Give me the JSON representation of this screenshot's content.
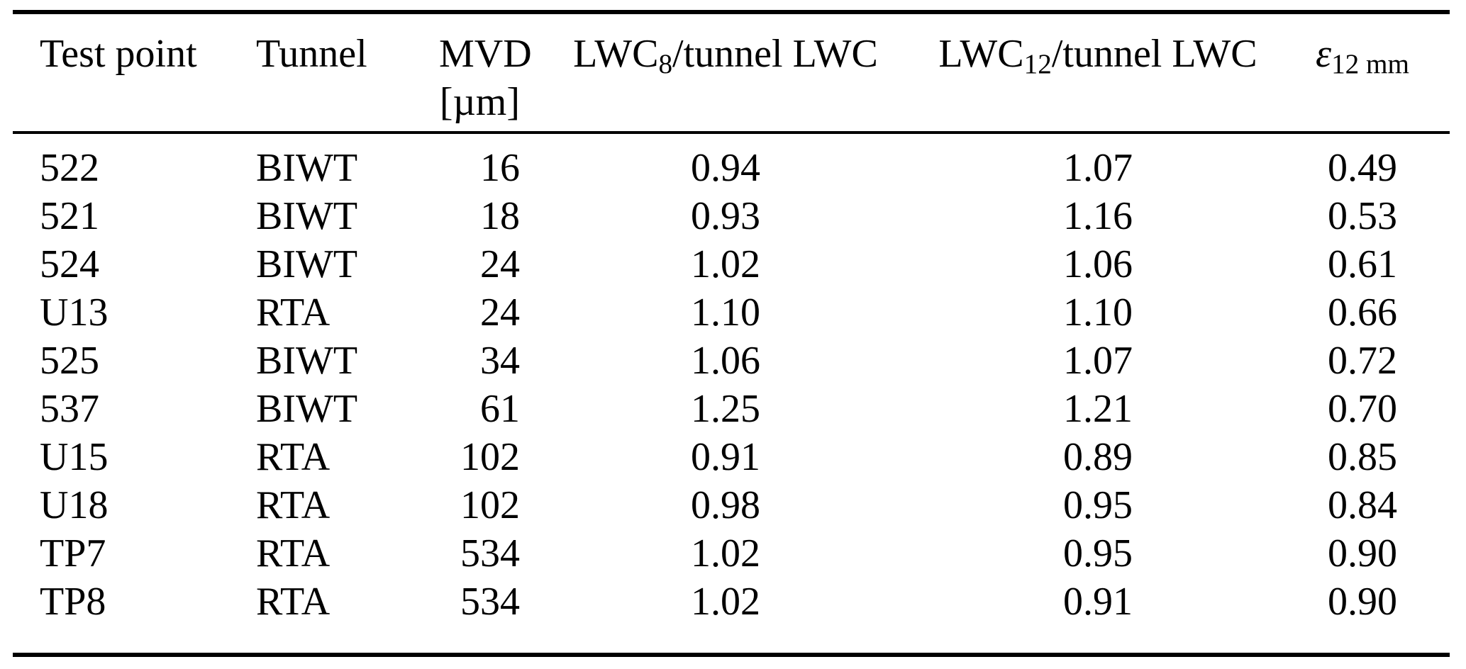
{
  "table": {
    "headers": [
      {
        "id": "test-point",
        "line1": "Test point"
      },
      {
        "id": "tunnel",
        "line1": "Tunnel"
      },
      {
        "id": "mvd",
        "line1": "MVD",
        "line2": "[µm]"
      },
      {
        "id": "lwc8-ratio",
        "pre": "LWC",
        "sub": "8",
        "post": "/tunnel LWC"
      },
      {
        "id": "lwc12-ratio",
        "pre": "LWC",
        "sub": "12",
        "post": "/tunnel LWC"
      },
      {
        "id": "epsilon-12mm",
        "pre": "ε",
        "sub": "12 mm",
        "post": "",
        "italic": true
      }
    ],
    "rows": [
      [
        "522",
        "BIWT",
        "16",
        "0.94",
        "1.07",
        "0.49"
      ],
      [
        "521",
        "BIWT",
        "18",
        "0.93",
        "1.16",
        "0.53"
      ],
      [
        "524",
        "BIWT",
        "24",
        "1.02",
        "1.06",
        "0.61"
      ],
      [
        "U13",
        "RTA",
        "24",
        "1.10",
        "1.10",
        "0.66"
      ],
      [
        "525",
        "BIWT",
        "34",
        "1.06",
        "1.07",
        "0.72"
      ],
      [
        "537",
        "BIWT",
        "61",
        "1.25",
        "1.21",
        "0.70"
      ],
      [
        "U15",
        "RTA",
        "102",
        "0.91",
        "0.89",
        "0.85"
      ],
      [
        "U18",
        "RTA",
        "102",
        "0.98",
        "0.95",
        "0.84"
      ],
      [
        "TP7",
        "RTA",
        "534",
        "1.02",
        "0.95",
        "0.90"
      ],
      [
        "TP8",
        "RTA",
        "534",
        "1.02",
        "0.91",
        "0.90"
      ]
    ],
    "rules": {
      "top_color": "#000000",
      "mid_color": "#000000",
      "bottom_color": "#000000"
    }
  }
}
